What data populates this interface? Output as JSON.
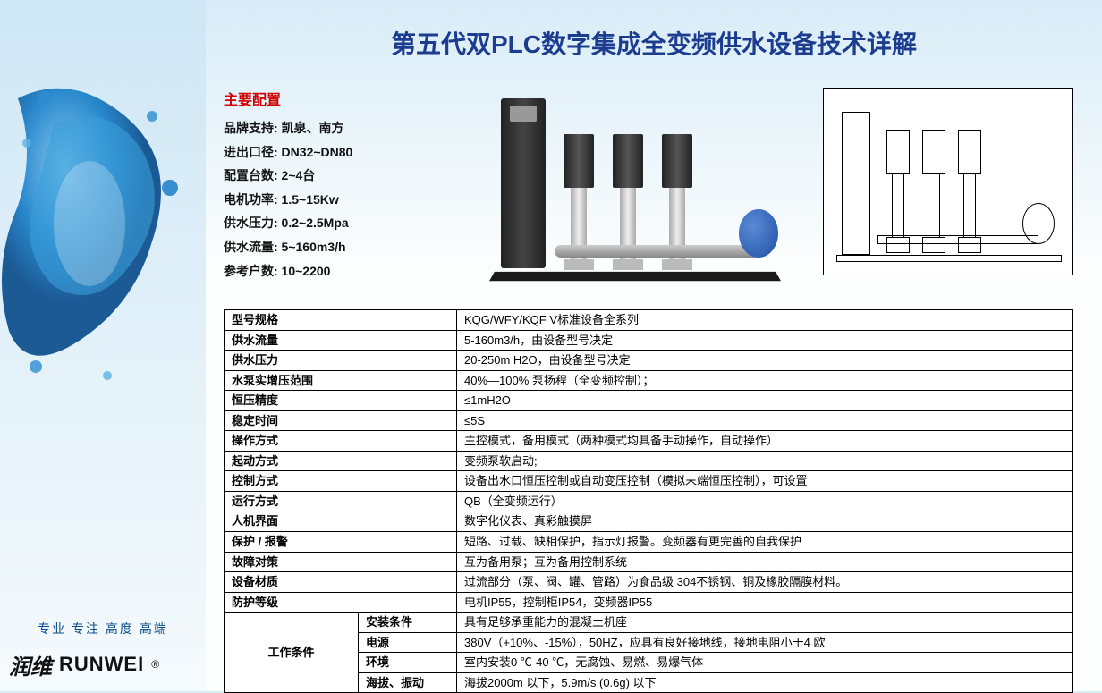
{
  "page_title": "第五代双PLC数字集成全变频供水设备技术详解",
  "tagline": "专业  专注  高度  高端",
  "brand_cn": "润维",
  "brand_en": "RUNWEI",
  "brand_reg": "®",
  "config_title": "主要配置",
  "config": [
    {
      "label": "品牌支持:",
      "value": "凯泉、南方"
    },
    {
      "label": "进出口径:",
      "value": "DN32~DN80"
    },
    {
      "label": "配置台数:",
      "value": "2~4台"
    },
    {
      "label": "电机功率:",
      "value": "1.5~15Kw"
    },
    {
      "label": "供水压力:",
      "value": "0.2~2.5Mpa"
    },
    {
      "label": "供水流量:",
      "value": "5~160m3/h"
    },
    {
      "label": "参考户数:",
      "value": "10~2200"
    }
  ],
  "specs_simple": [
    {
      "k": "型号规格",
      "v": "KQG/WFY/KQF V标准设备全系列"
    },
    {
      "k": "供水流量",
      "v": "5-160m3/h，由设备型号决定"
    },
    {
      "k": "供水压力",
      "v": "20-250m H2O，由设备型号决定"
    },
    {
      "k": "水泵实增压范围",
      "v": "40%—100% 泵扬程（全变频控制）；"
    },
    {
      "k": "恒压精度",
      "v": "≤1mH2O"
    },
    {
      "k": "稳定时间",
      "v": "≤5S"
    },
    {
      "k": "操作方式",
      "v": "主控模式，备用模式（两种模式均具备手动操作，自动操作）"
    },
    {
      "k": "起动方式",
      "v": "变频泵软启动;"
    },
    {
      "k": "控制方式",
      "v": "设备出水口恒压控制或自动变压控制（模拟末端恒压控制），可设置"
    },
    {
      "k": "运行方式",
      "v": "QB（全变频运行）"
    },
    {
      "k": "人机界面",
      "v": "数字化仪表、真彩触摸屏"
    },
    {
      "k": "保护 / 报警",
      "v": "短路、过载、缺相保护，指示灯报警。变频器有更完善的自我保护"
    },
    {
      "k": "故障对策",
      "v": "互为备用泵；互为备用控制系统"
    },
    {
      "k": "设备材质",
      "v": "过流部分（泵、阀、罐、管路）为食品级 304不锈钢、铜及橡胶隔膜材料。"
    },
    {
      "k": "防护等级",
      "v": "电机IP55，控制柜IP54，变频器IP55"
    }
  ],
  "work_label": "工作条件",
  "work_rows": [
    {
      "k": "安装条件",
      "v": "具有足够承重能力的混凝土机座"
    },
    {
      "k": "电源",
      "v": "380V（+10%、-15%），50HZ，应具有良好接地线，接地电阻小于4 欧"
    },
    {
      "k": "环境",
      "v": "室内安装0 ℃-40 ℃，无腐蚀、易燃、易爆气体"
    },
    {
      "k": "海拔、振动",
      "v": "海拔2000m 以下，5.9m/s (0.6g) 以下"
    }
  ],
  "colors": {
    "title": "#1b3c8f",
    "config_title": "#d00000",
    "tank": "#1f4fa3"
  }
}
